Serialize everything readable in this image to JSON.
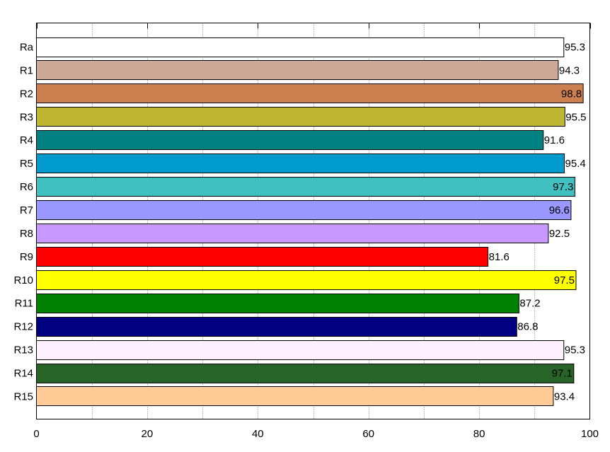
{
  "chart_data": {
    "type": "bar",
    "orientation": "horizontal",
    "title": "",
    "xlabel": "",
    "ylabel": "",
    "xlim": [
      0,
      100
    ],
    "xticks": [
      0,
      20,
      40,
      60,
      80,
      100
    ],
    "grid": "vertical-dotted",
    "legend": "none",
    "categories": [
      "Ra",
      "R1",
      "R2",
      "R3",
      "R4",
      "R5",
      "R6",
      "R7",
      "R8",
      "R9",
      "R10",
      "R11",
      "R12",
      "R13",
      "R14",
      "R15"
    ],
    "values": [
      95.3,
      94.3,
      98.8,
      95.5,
      91.6,
      95.4,
      97.3,
      96.6,
      92.5,
      81.6,
      97.5,
      87.2,
      86.8,
      95.3,
      97.1,
      93.4
    ],
    "data_labels": [
      "95.3",
      "94.3",
      "98.8",
      "95.5",
      "91.6",
      "95.4",
      "97.3",
      "96.6",
      "92.5",
      "81.6",
      "97.5",
      "87.2",
      "86.8",
      "95.3",
      "97.1",
      "93.4"
    ],
    "colors": [
      "#ffffff",
      "#cca896",
      "#cc8050",
      "#bfb732",
      "#008080",
      "#009acd",
      "#40c0c0",
      "#9898ff",
      "#c898ff",
      "#ff0000",
      "#ffff00",
      "#008000",
      "#000080",
      "#fff0ff",
      "#286428",
      "#ffcc98"
    ]
  }
}
